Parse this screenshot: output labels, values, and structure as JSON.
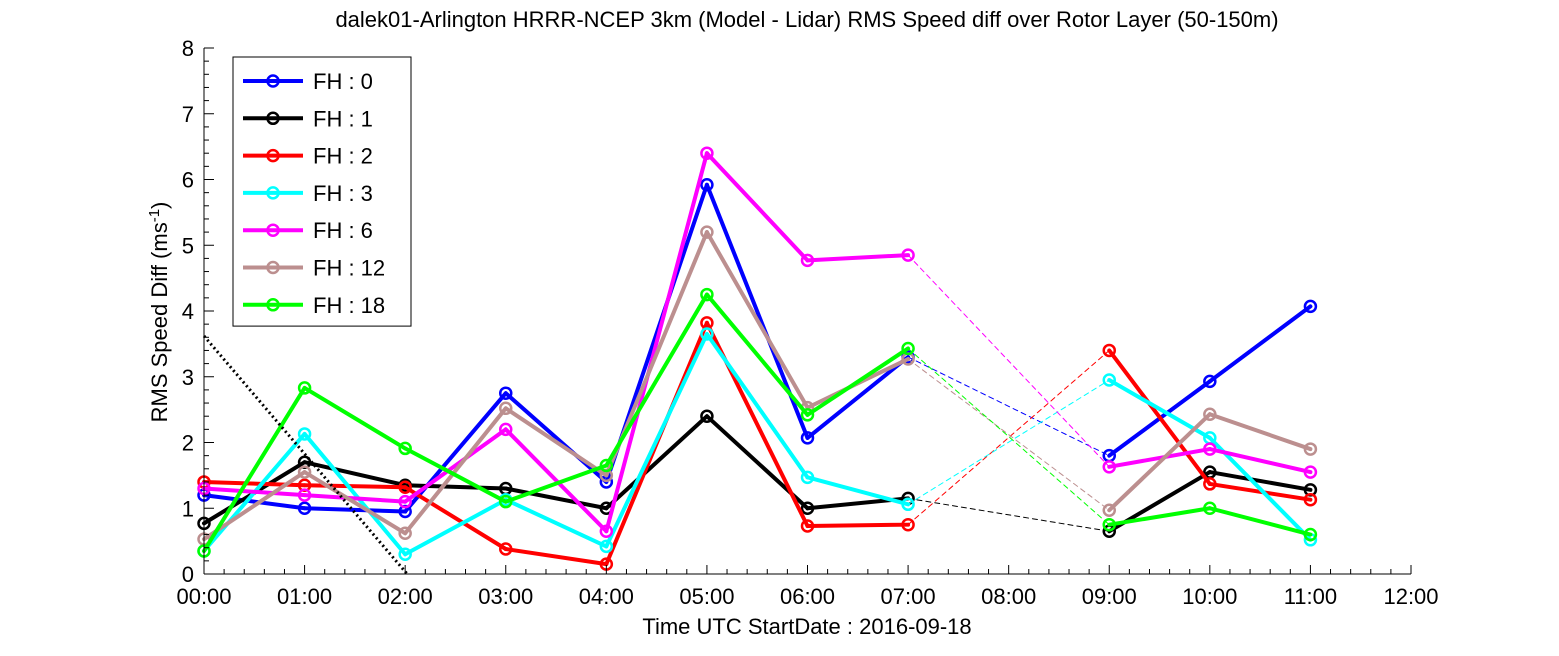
{
  "chart_data": {
    "type": "line",
    "title": "dalek01-Arlington HRRR-NCEP 3km (Model - Lidar) RMS Speed diff over Rotor Layer (50-150m)",
    "xlabel": "Time UTC    StartDate : 2016-09-18",
    "ylabel": {
      "main": "RMS Speed Diff (ms",
      "sup": "-1",
      "close": ")"
    },
    "xlim": [
      0,
      12
    ],
    "ylim": [
      0,
      8
    ],
    "xticks": [
      0,
      1,
      2,
      3,
      4,
      5,
      6,
      7,
      8,
      9,
      10,
      11,
      12
    ],
    "xtick_labels": [
      "00:00",
      "01:00",
      "02:00",
      "03:00",
      "04:00",
      "05:00",
      "06:00",
      "07:00",
      "08:00",
      "09:00",
      "10:00",
      "11:00",
      "12:00"
    ],
    "yticks": [
      0,
      1,
      2,
      3,
      4,
      5,
      6,
      7,
      8
    ],
    "ytick_labels": [
      "0",
      "1",
      "2",
      "3",
      "4",
      "5",
      "6",
      "7",
      "8"
    ],
    "x": [
      0,
      1,
      2,
      3,
      4,
      5,
      6,
      7,
      9,
      10,
      11
    ],
    "legend_position": "top-left",
    "series": [
      {
        "name": "FH : 0",
        "color": "#0000ff",
        "values": [
          1.2,
          1.0,
          0.95,
          2.75,
          1.4,
          5.92,
          2.07,
          3.3,
          1.8,
          2.93,
          4.07
        ]
      },
      {
        "name": "FH : 1",
        "color": "#000000",
        "values": [
          0.77,
          1.7,
          1.35,
          1.3,
          1.0,
          2.4,
          1.0,
          1.15,
          0.65,
          1.55,
          1.28
        ]
      },
      {
        "name": "FH : 2",
        "color": "#ff0000",
        "values": [
          1.4,
          1.35,
          1.32,
          0.38,
          0.15,
          3.82,
          0.73,
          0.75,
          3.4,
          1.37,
          1.13
        ]
      },
      {
        "name": "FH : 3",
        "color": "#00ffff",
        "values": [
          0.35,
          2.13,
          0.3,
          1.13,
          0.42,
          3.65,
          1.47,
          1.06,
          2.95,
          2.07,
          0.52
        ]
      },
      {
        "name": "FH : 6",
        "color": "#ff00ff",
        "values": [
          1.3,
          1.2,
          1.1,
          2.2,
          0.65,
          6.4,
          4.77,
          4.85,
          1.63,
          1.9,
          1.55
        ]
      },
      {
        "name": "FH : 12",
        "color": "#bc8f8f",
        "values": [
          0.53,
          1.55,
          0.62,
          2.52,
          1.5,
          5.2,
          2.53,
          3.27,
          0.97,
          2.43,
          1.9
        ]
      },
      {
        "name": "FH : 18",
        "color": "#00ff00",
        "values": [
          0.35,
          2.83,
          1.91,
          1.1,
          1.65,
          4.25,
          2.42,
          3.43,
          0.75,
          1.0,
          0.6
        ]
      }
    ],
    "annotation": {
      "type": "dotted-line",
      "color": "#000000",
      "from": [
        0,
        3.62
      ],
      "to": [
        2.02,
        0
      ]
    }
  }
}
